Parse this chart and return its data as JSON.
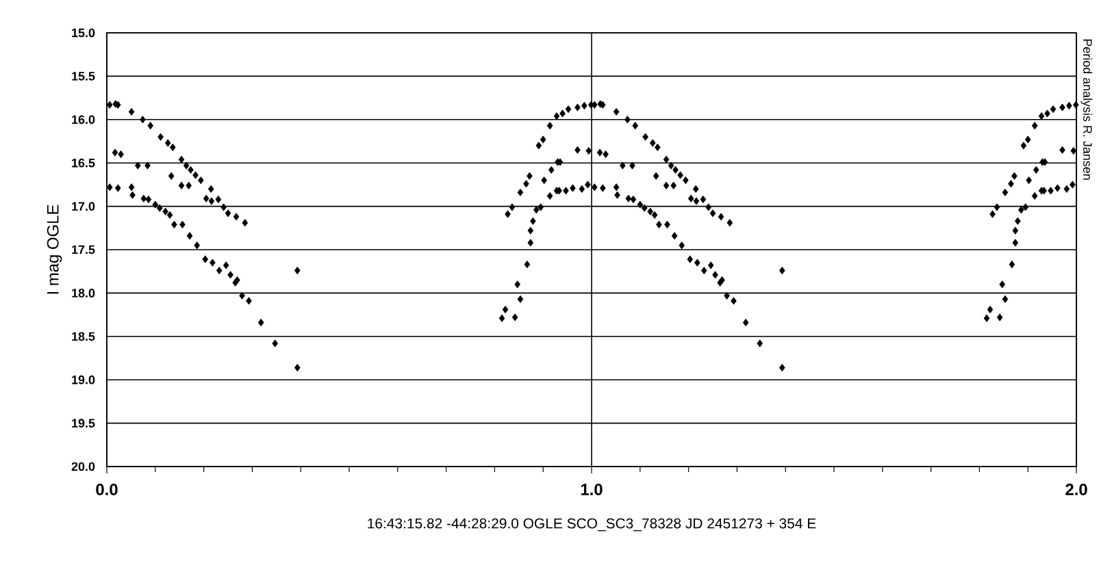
{
  "chart_data": {
    "type": "scatter",
    "xlabel": "16:43:15.82 -44:28:29.0     OGLE SCO_SC3_78328     JD 2451273 + 354 E",
    "ylabel": "I mag OGLE",
    "annotations": [
      "Period analysis R. Jansen"
    ],
    "xlim": [
      0,
      2
    ],
    "ylim": [
      20,
      15
    ],
    "xticks": [
      {
        "value": 0,
        "label": "0.0"
      },
      {
        "value": 0.1,
        "label": null
      },
      {
        "value": 0.2,
        "label": null
      },
      {
        "value": 0.3,
        "label": null
      },
      {
        "value": 0.4,
        "label": null
      },
      {
        "value": 0.5,
        "label": null
      },
      {
        "value": 0.6,
        "label": null
      },
      {
        "value": 0.7,
        "label": null
      },
      {
        "value": 0.8,
        "label": null
      },
      {
        "value": 0.9,
        "label": null
      },
      {
        "value": 1,
        "label": "1.0"
      },
      {
        "value": 1.1,
        "label": null
      },
      {
        "value": 1.2,
        "label": null
      },
      {
        "value": 1.3,
        "label": null
      },
      {
        "value": 1.4,
        "label": null
      },
      {
        "value": 1.5,
        "label": null
      },
      {
        "value": 1.6,
        "label": null
      },
      {
        "value": 1.7,
        "label": null
      },
      {
        "value": 1.8,
        "label": null
      },
      {
        "value": 1.9,
        "label": null
      },
      {
        "value": 2,
        "label": "2.0"
      }
    ],
    "yticks": [
      {
        "value": 15,
        "label": "15.0"
      },
      {
        "value": 15.5,
        "label": "15.5"
      },
      {
        "value": 16,
        "label": "16.0"
      },
      {
        "value": 16.5,
        "label": "16.5"
      },
      {
        "value": 17,
        "label": "17.0"
      },
      {
        "value": 17.5,
        "label": "17.5"
      },
      {
        "value": 18,
        "label": "18.0"
      },
      {
        "value": 18.5,
        "label": "18.5"
      },
      {
        "value": 19,
        "label": "19.0"
      },
      {
        "value": 19.5,
        "label": "19.5"
      },
      {
        "value": 20,
        "label": "20.0"
      }
    ],
    "grid": true,
    "marker": "diamond",
    "series": [
      {
        "color": "#000000",
        "x": [
          0.006,
          0.018,
          0.023,
          0.051,
          0.074,
          0.09,
          0.111,
          0.126,
          0.136,
          0.154,
          0.164,
          0.173,
          0.183,
          0.194,
          0.205,
          0.215,
          0.216,
          0.23,
          0.241,
          0.25,
          0.267,
          0.285,
          0.017,
          0.029,
          0.064,
          0.084,
          0.133,
          0.154,
          0.169,
          0.006,
          0.023,
          0.051,
          0.053,
          0.076,
          0.086,
          0.1,
          0.109,
          0.121,
          0.13,
          0.139,
          0.156,
          0.171,
          0.186,
          0.203,
          0.218,
          0.232,
          0.246,
          0.255,
          0.265,
          0.269,
          0.279,
          0.293,
          0.318,
          0.347,
          0.393,
          0.393,
          0.815,
          0.822,
          0.842,
          0.847,
          0.853,
          0.867,
          0.874,
          0.874,
          0.879,
          0.827,
          0.836,
          0.853,
          0.865,
          0.872,
          0.886,
          0.895,
          0.902,
          0.914,
          0.917,
          0.93,
          0.935,
          0.928,
          0.947,
          0.933,
          0.891,
          0.9,
          0.914,
          0.928,
          0.94,
          0.952,
          0.971,
          0.985,
          0.999,
          0.971,
          0.994,
          0.961,
          0.98,
          0.992,
          1.006,
          1.018,
          1.023,
          1.051,
          1.074,
          1.09,
          1.111,
          1.126,
          1.136,
          1.154,
          1.164,
          1.173,
          1.183,
          1.194,
          1.205,
          1.215,
          1.216,
          1.23,
          1.241,
          1.25,
          1.267,
          1.285,
          1.017,
          1.029,
          1.064,
          1.084,
          1.133,
          1.154,
          1.169,
          1.006,
          1.023,
          1.051,
          1.053,
          1.076,
          1.086,
          1.1,
          1.109,
          1.121,
          1.13,
          1.139,
          1.156,
          1.171,
          1.186,
          1.203,
          1.218,
          1.232,
          1.246,
          1.255,
          1.265,
          1.269,
          1.279,
          1.293,
          1.318,
          1.347,
          1.393,
          1.393,
          1.815,
          1.822,
          1.842,
          1.847,
          1.853,
          1.867,
          1.874,
          1.874,
          1.879,
          1.827,
          1.836,
          1.853,
          1.865,
          1.872,
          1.886,
          1.895,
          1.902,
          1.914,
          1.917,
          1.93,
          1.935,
          1.928,
          1.947,
          1.933,
          1.891,
          1.9,
          1.914,
          1.928,
          1.94,
          1.952,
          1.971,
          1.985,
          1.999,
          1.971,
          1.994,
          1.961,
          1.98,
          1.992
        ],
        "values": [
          15.83,
          15.82,
          15.83,
          15.91,
          16.0,
          16.07,
          16.2,
          16.27,
          16.32,
          16.46,
          16.53,
          16.58,
          16.64,
          16.7,
          16.91,
          16.8,
          16.94,
          16.92,
          17.01,
          17.08,
          17.12,
          17.19,
          16.38,
          16.4,
          16.53,
          16.53,
          16.65,
          16.76,
          16.76,
          16.78,
          16.79,
          16.78,
          16.87,
          16.91,
          16.92,
          16.98,
          17.02,
          17.06,
          17.1,
          17.21,
          17.21,
          17.34,
          17.45,
          17.61,
          17.65,
          17.74,
          17.68,
          17.79,
          17.88,
          17.85,
          18.03,
          18.09,
          18.34,
          18.58,
          18.86,
          17.74,
          18.29,
          18.19,
          18.28,
          17.9,
          18.07,
          17.67,
          17.42,
          17.28,
          17.17,
          17.09,
          17.01,
          16.84,
          16.74,
          16.65,
          17.04,
          17.01,
          16.7,
          16.88,
          16.58,
          16.49,
          16.49,
          16.82,
          16.82,
          16.82,
          16.3,
          16.23,
          16.07,
          15.96,
          15.93,
          15.88,
          15.86,
          15.84,
          15.83,
          16.35,
          16.36,
          16.79,
          16.8,
          16.75,
          15.83,
          15.82,
          15.83,
          15.91,
          16.0,
          16.07,
          16.2,
          16.27,
          16.32,
          16.46,
          16.53,
          16.58,
          16.64,
          16.7,
          16.91,
          16.8,
          16.94,
          16.92,
          17.01,
          17.08,
          17.12,
          17.19,
          16.38,
          16.4,
          16.53,
          16.53,
          16.65,
          16.76,
          16.76,
          16.78,
          16.79,
          16.78,
          16.87,
          16.91,
          16.92,
          16.98,
          17.02,
          17.06,
          17.1,
          17.21,
          17.21,
          17.34,
          17.45,
          17.61,
          17.65,
          17.74,
          17.68,
          17.79,
          17.88,
          17.85,
          18.03,
          18.09,
          18.34,
          18.58,
          18.86,
          17.74,
          18.29,
          18.19,
          18.28,
          17.9,
          18.07,
          17.67,
          17.42,
          17.28,
          17.17,
          17.09,
          17.01,
          16.84,
          16.74,
          16.65,
          17.04,
          17.01,
          16.7,
          16.88,
          16.58,
          16.49,
          16.49,
          16.82,
          16.82,
          16.82,
          16.3,
          16.23,
          16.07,
          15.96,
          15.93,
          15.88,
          15.86,
          15.84,
          15.83,
          16.35,
          16.36,
          16.79,
          16.8,
          16.75
        ]
      }
    ]
  }
}
